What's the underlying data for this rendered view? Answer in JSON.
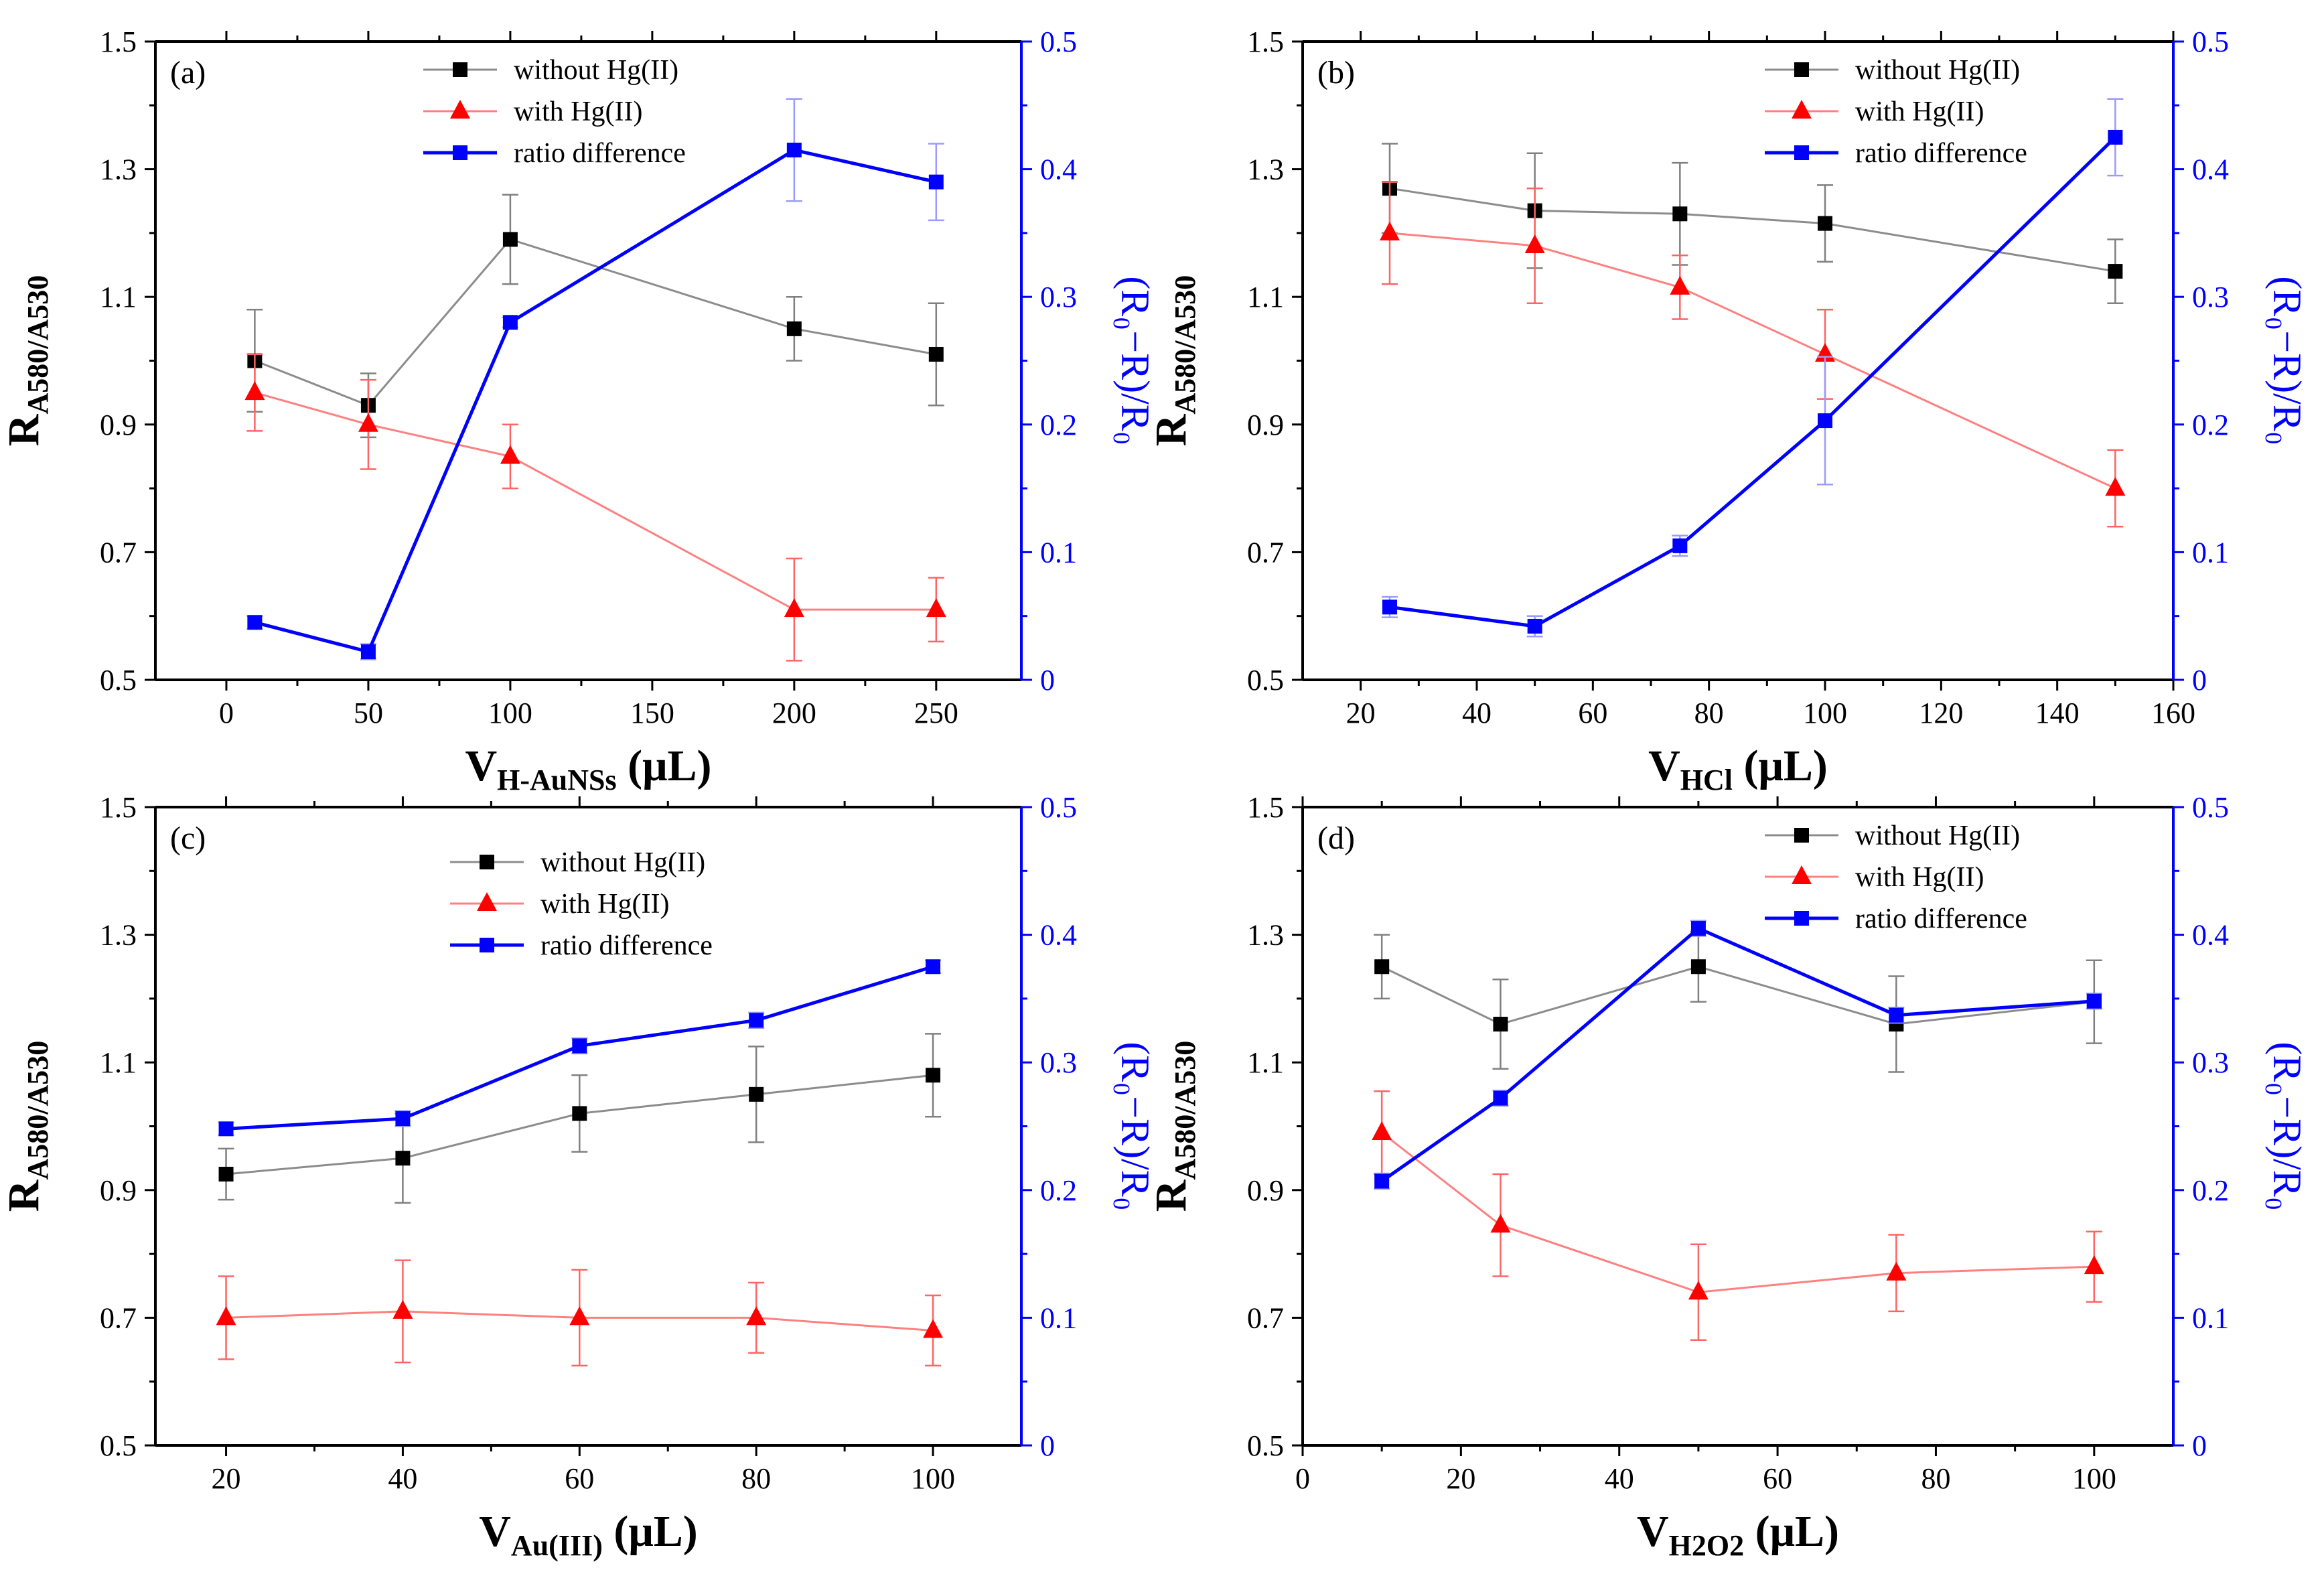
{
  "figure": {
    "colors": {
      "axis": "#000000",
      "black": "#000000",
      "red": "#ff0000",
      "blue": "#0000ff",
      "black_line": "#8c8c8c",
      "red_line": "#ff8080",
      "err_black": "#808080",
      "err_red": "#ff6464",
      "err_blue": "#9a9aff"
    }
  },
  "chart_data": [
    {
      "id": "a",
      "type": "line",
      "panel_label": "(a)",
      "xlabel_main": "V",
      "xlabel_sub": "H-AuNSs",
      "xlabel_unit": " (μL)",
      "ylabel_left_main": "R",
      "ylabel_left_sub": "A580/A530",
      "ylabel_right": "(R₀−R)/R₀",
      "xlim": [
        -25,
        280
      ],
      "xticks": [
        0,
        50,
        100,
        150,
        200,
        250
      ],
      "xtick_labels": [
        "0",
        "50",
        "100",
        "150",
        "200",
        "250"
      ],
      "ylim_left": [
        0.5,
        1.5
      ],
      "yticks_left": [
        0.5,
        0.7,
        0.9,
        1.1,
        1.3,
        1.5
      ],
      "ytick_labels_left": [
        "0.5",
        "0.7",
        "0.9",
        "1.1",
        "1.3",
        "1.5"
      ],
      "ylim_right": [
        0,
        0.5
      ],
      "yticks_right": [
        0,
        0.1,
        0.2,
        0.3,
        0.4,
        0.5
      ],
      "ytick_labels_right": [
        "0",
        "0.1",
        "0.2",
        "0.3",
        "0.4",
        "0.5"
      ],
      "legend_position": "top-left",
      "series": [
        {
          "name": "without Hg(II)",
          "axis": "left",
          "marker": "square",
          "color": "black",
          "x": [
            10,
            50,
            100,
            200,
            250
          ],
          "y": [
            1.0,
            0.93,
            1.19,
            1.05,
            1.01
          ],
          "err": [
            0.08,
            0.05,
            0.07,
            0.05,
            0.08
          ]
        },
        {
          "name": "with Hg(II)",
          "axis": "left",
          "marker": "triangle",
          "color": "red",
          "x": [
            10,
            50,
            100,
            200,
            250
          ],
          "y": [
            0.95,
            0.9,
            0.85,
            0.61,
            0.61
          ],
          "err": [
            0.06,
            0.07,
            0.05,
            0.08,
            0.05
          ]
        },
        {
          "name": "ratio difference",
          "axis": "right",
          "marker": "square",
          "color": "blue",
          "x": [
            10,
            50,
            100,
            200,
            250
          ],
          "y": [
            0.045,
            0.022,
            0.28,
            0.415,
            0.39
          ],
          "err": [
            0.005,
            0.006,
            0.004,
            0.04,
            0.03
          ]
        }
      ]
    },
    {
      "id": "b",
      "type": "line",
      "panel_label": "(b)",
      "xlabel_main": "V",
      "xlabel_sub": "HCl",
      "xlabel_unit": " (μL)",
      "ylabel_left_main": "R",
      "ylabel_left_sub": "A580/A530",
      "ylabel_right": "(R₀−R)/R₀",
      "xlim": [
        10,
        160
      ],
      "xticks": [
        20,
        40,
        60,
        80,
        100,
        120,
        140,
        160
      ],
      "xtick_labels": [
        "20",
        "40",
        "60",
        "80",
        "100",
        "120",
        "140",
        "160"
      ],
      "ylim_left": [
        0.5,
        1.5
      ],
      "yticks_left": [
        0.5,
        0.7,
        0.9,
        1.1,
        1.3,
        1.5
      ],
      "ytick_labels_left": [
        "0.5",
        "0.7",
        "0.9",
        "1.1",
        "1.3",
        "1.5"
      ],
      "ylim_right": [
        0,
        0.5
      ],
      "yticks_right": [
        0,
        0.1,
        0.2,
        0.3,
        0.4,
        0.5
      ],
      "ytick_labels_right": [
        "0",
        "0.1",
        "0.2",
        "0.3",
        "0.4",
        "0.5"
      ],
      "legend_position": "top-right",
      "series": [
        {
          "name": "without Hg(II)",
          "axis": "left",
          "marker": "square",
          "color": "black",
          "x": [
            25,
            50,
            75,
            100,
            150
          ],
          "y": [
            1.27,
            1.235,
            1.23,
            1.215,
            1.14
          ],
          "err": [
            0.07,
            0.09,
            0.08,
            0.06,
            0.05
          ]
        },
        {
          "name": "with Hg(II)",
          "axis": "left",
          "marker": "triangle",
          "color": "red",
          "x": [
            25,
            50,
            75,
            100,
            150
          ],
          "y": [
            1.2,
            1.18,
            1.115,
            1.01,
            0.8
          ],
          "err": [
            0.08,
            0.09,
            0.05,
            0.07,
            0.06
          ]
        },
        {
          "name": "ratio difference",
          "axis": "right",
          "marker": "square",
          "color": "blue",
          "x": [
            25,
            50,
            75,
            100,
            150
          ],
          "y": [
            0.057,
            0.042,
            0.105,
            0.203,
            0.425
          ],
          "err": [
            0.008,
            0.008,
            0.008,
            0.05,
            0.03
          ]
        }
      ]
    },
    {
      "id": "c",
      "type": "line",
      "panel_label": "(c)",
      "xlabel_main": "V",
      "xlabel_sub": "Au(III)",
      "xlabel_unit": " (μL)",
      "ylabel_left_main": "R",
      "ylabel_left_sub": "A580/A530",
      "ylabel_right": "(R₀−R)/R₀",
      "xlim": [
        12,
        110
      ],
      "xticks": [
        20,
        40,
        60,
        80,
        100
      ],
      "xtick_labels": [
        "20",
        "40",
        "60",
        "80",
        "100"
      ],
      "ylim_left": [
        0.5,
        1.5
      ],
      "yticks_left": [
        0.5,
        0.7,
        0.9,
        1.1,
        1.3,
        1.5
      ],
      "ytick_labels_left": [
        "0.5",
        "0.7",
        "0.9",
        "1.1",
        "1.3",
        "1.5"
      ],
      "ylim_right": [
        0,
        0.5
      ],
      "yticks_right": [
        0,
        0.1,
        0.2,
        0.3,
        0.4,
        0.5
      ],
      "ytick_labels_right": [
        "0",
        "0.1",
        "0.2",
        "0.3",
        "0.4",
        "0.5"
      ],
      "legend_position": "top-center",
      "series": [
        {
          "name": "without Hg(II)",
          "axis": "left",
          "marker": "square",
          "color": "black",
          "x": [
            20,
            40,
            60,
            80,
            100
          ],
          "y": [
            0.925,
            0.95,
            1.02,
            1.05,
            1.08
          ],
          "err": [
            0.04,
            0.07,
            0.06,
            0.075,
            0.065
          ]
        },
        {
          "name": "with Hg(II)",
          "axis": "left",
          "marker": "triangle",
          "color": "red",
          "x": [
            20,
            40,
            60,
            80,
            100
          ],
          "y": [
            0.7,
            0.71,
            0.7,
            0.7,
            0.68
          ],
          "err": [
            0.065,
            0.08,
            0.075,
            0.055,
            0.055
          ]
        },
        {
          "name": "ratio difference",
          "axis": "right",
          "marker": "square",
          "color": "blue",
          "x": [
            20,
            40,
            60,
            80,
            100
          ],
          "y": [
            0.248,
            0.256,
            0.313,
            0.333,
            0.375
          ],
          "err": [
            0.005,
            0.006,
            0.006,
            0.006,
            0.005
          ]
        }
      ]
    },
    {
      "id": "d",
      "type": "line",
      "panel_label": "(d)",
      "xlabel_main": "V",
      "xlabel_sub": "H2O2",
      "xlabel_unit": " (μL)",
      "ylabel_left_main": "R",
      "ylabel_left_sub": "A580/A530",
      "ylabel_right": "(R₀−R)/R₀",
      "xlim": [
        0,
        110
      ],
      "xticks": [
        0,
        20,
        40,
        60,
        80,
        100
      ],
      "xtick_labels": [
        "0",
        "20",
        "40",
        "60",
        "80",
        "100"
      ],
      "ylim_left": [
        0.5,
        1.5
      ],
      "yticks_left": [
        0.5,
        0.7,
        0.9,
        1.1,
        1.3,
        1.5
      ],
      "ytick_labels_left": [
        "0.5",
        "0.7",
        "0.9",
        "1.1",
        "1.3",
        "1.5"
      ],
      "ylim_right": [
        0,
        0.5
      ],
      "yticks_right": [
        0,
        0.1,
        0.2,
        0.3,
        0.4,
        0.5
      ],
      "ytick_labels_right": [
        "0",
        "0.1",
        "0.2",
        "0.3",
        "0.4",
        "0.5"
      ],
      "legend_position": "top-right",
      "series": [
        {
          "name": "without Hg(II)",
          "axis": "left",
          "marker": "square",
          "color": "black",
          "x": [
            10,
            25,
            50,
            75,
            100
          ],
          "y": [
            1.25,
            1.16,
            1.25,
            1.16,
            1.195
          ],
          "err": [
            0.05,
            0.07,
            0.055,
            0.075,
            0.065
          ]
        },
        {
          "name": "with Hg(II)",
          "axis": "left",
          "marker": "triangle",
          "color": "red",
          "x": [
            10,
            25,
            50,
            75,
            100
          ],
          "y": [
            0.99,
            0.845,
            0.74,
            0.77,
            0.78
          ],
          "err": [
            0.065,
            0.08,
            0.075,
            0.06,
            0.055
          ]
        },
        {
          "name": "ratio difference",
          "axis": "right",
          "marker": "square",
          "color": "blue",
          "x": [
            10,
            25,
            50,
            75,
            100
          ],
          "y": [
            0.207,
            0.272,
            0.405,
            0.337,
            0.348
          ],
          "err": [
            0.006,
            0.006,
            0.006,
            0.006,
            0.006
          ]
        }
      ]
    }
  ]
}
